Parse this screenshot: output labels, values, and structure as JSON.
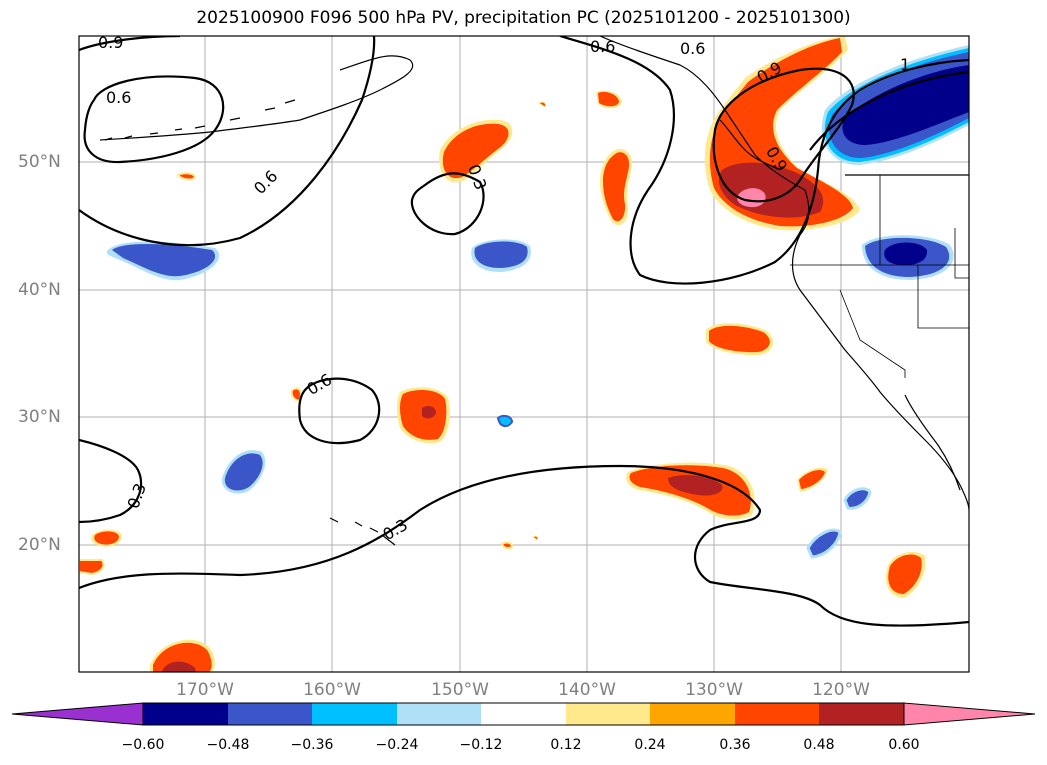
{
  "title": "2025100900 F096 500 hPa PV, precipitation PC (2025101200 - 2025101300)",
  "latitude_labels": [
    "50°N",
    "40°N",
    "30°N",
    "20°N"
  ],
  "longitude_labels": [
    "170°W",
    "160°W",
    "150°W",
    "140°W",
    "130°W",
    "120°W"
  ],
  "pv_contour_labels": [
    "0.9",
    "0.6",
    "0.6",
    "0.3",
    "0.6",
    "0.6",
    "0.3",
    "0.3",
    "0.6",
    "0.9",
    "1",
    "0.9"
  ],
  "colorbar": {
    "ticks": [
      "−0.60",
      "−0.48",
      "−0.36",
      "−0.24",
      "−0.12",
      "0.12",
      "0.24",
      "0.36",
      "0.48",
      "0.60"
    ],
    "colors": [
      "#9b30d0",
      "#00008b",
      "#3a56c9",
      "#00bfff",
      "#b0e0f8",
      "#ffffff",
      "#ffe98c",
      "#ffa500",
      "#ff4500",
      "#b22222",
      "#ff85aa"
    ]
  },
  "map_colors": {
    "pos_yellow": "#ffe98c",
    "pos_orange": "#ffa500",
    "pos_red": "#ff4500",
    "pos_darkred": "#b22222",
    "pos_pink": "#ff85aa",
    "neg_lightblue": "#b0e0f8",
    "neg_cyan": "#00bfff",
    "neg_blue": "#3a56c9",
    "neg_navy": "#00008b"
  }
}
